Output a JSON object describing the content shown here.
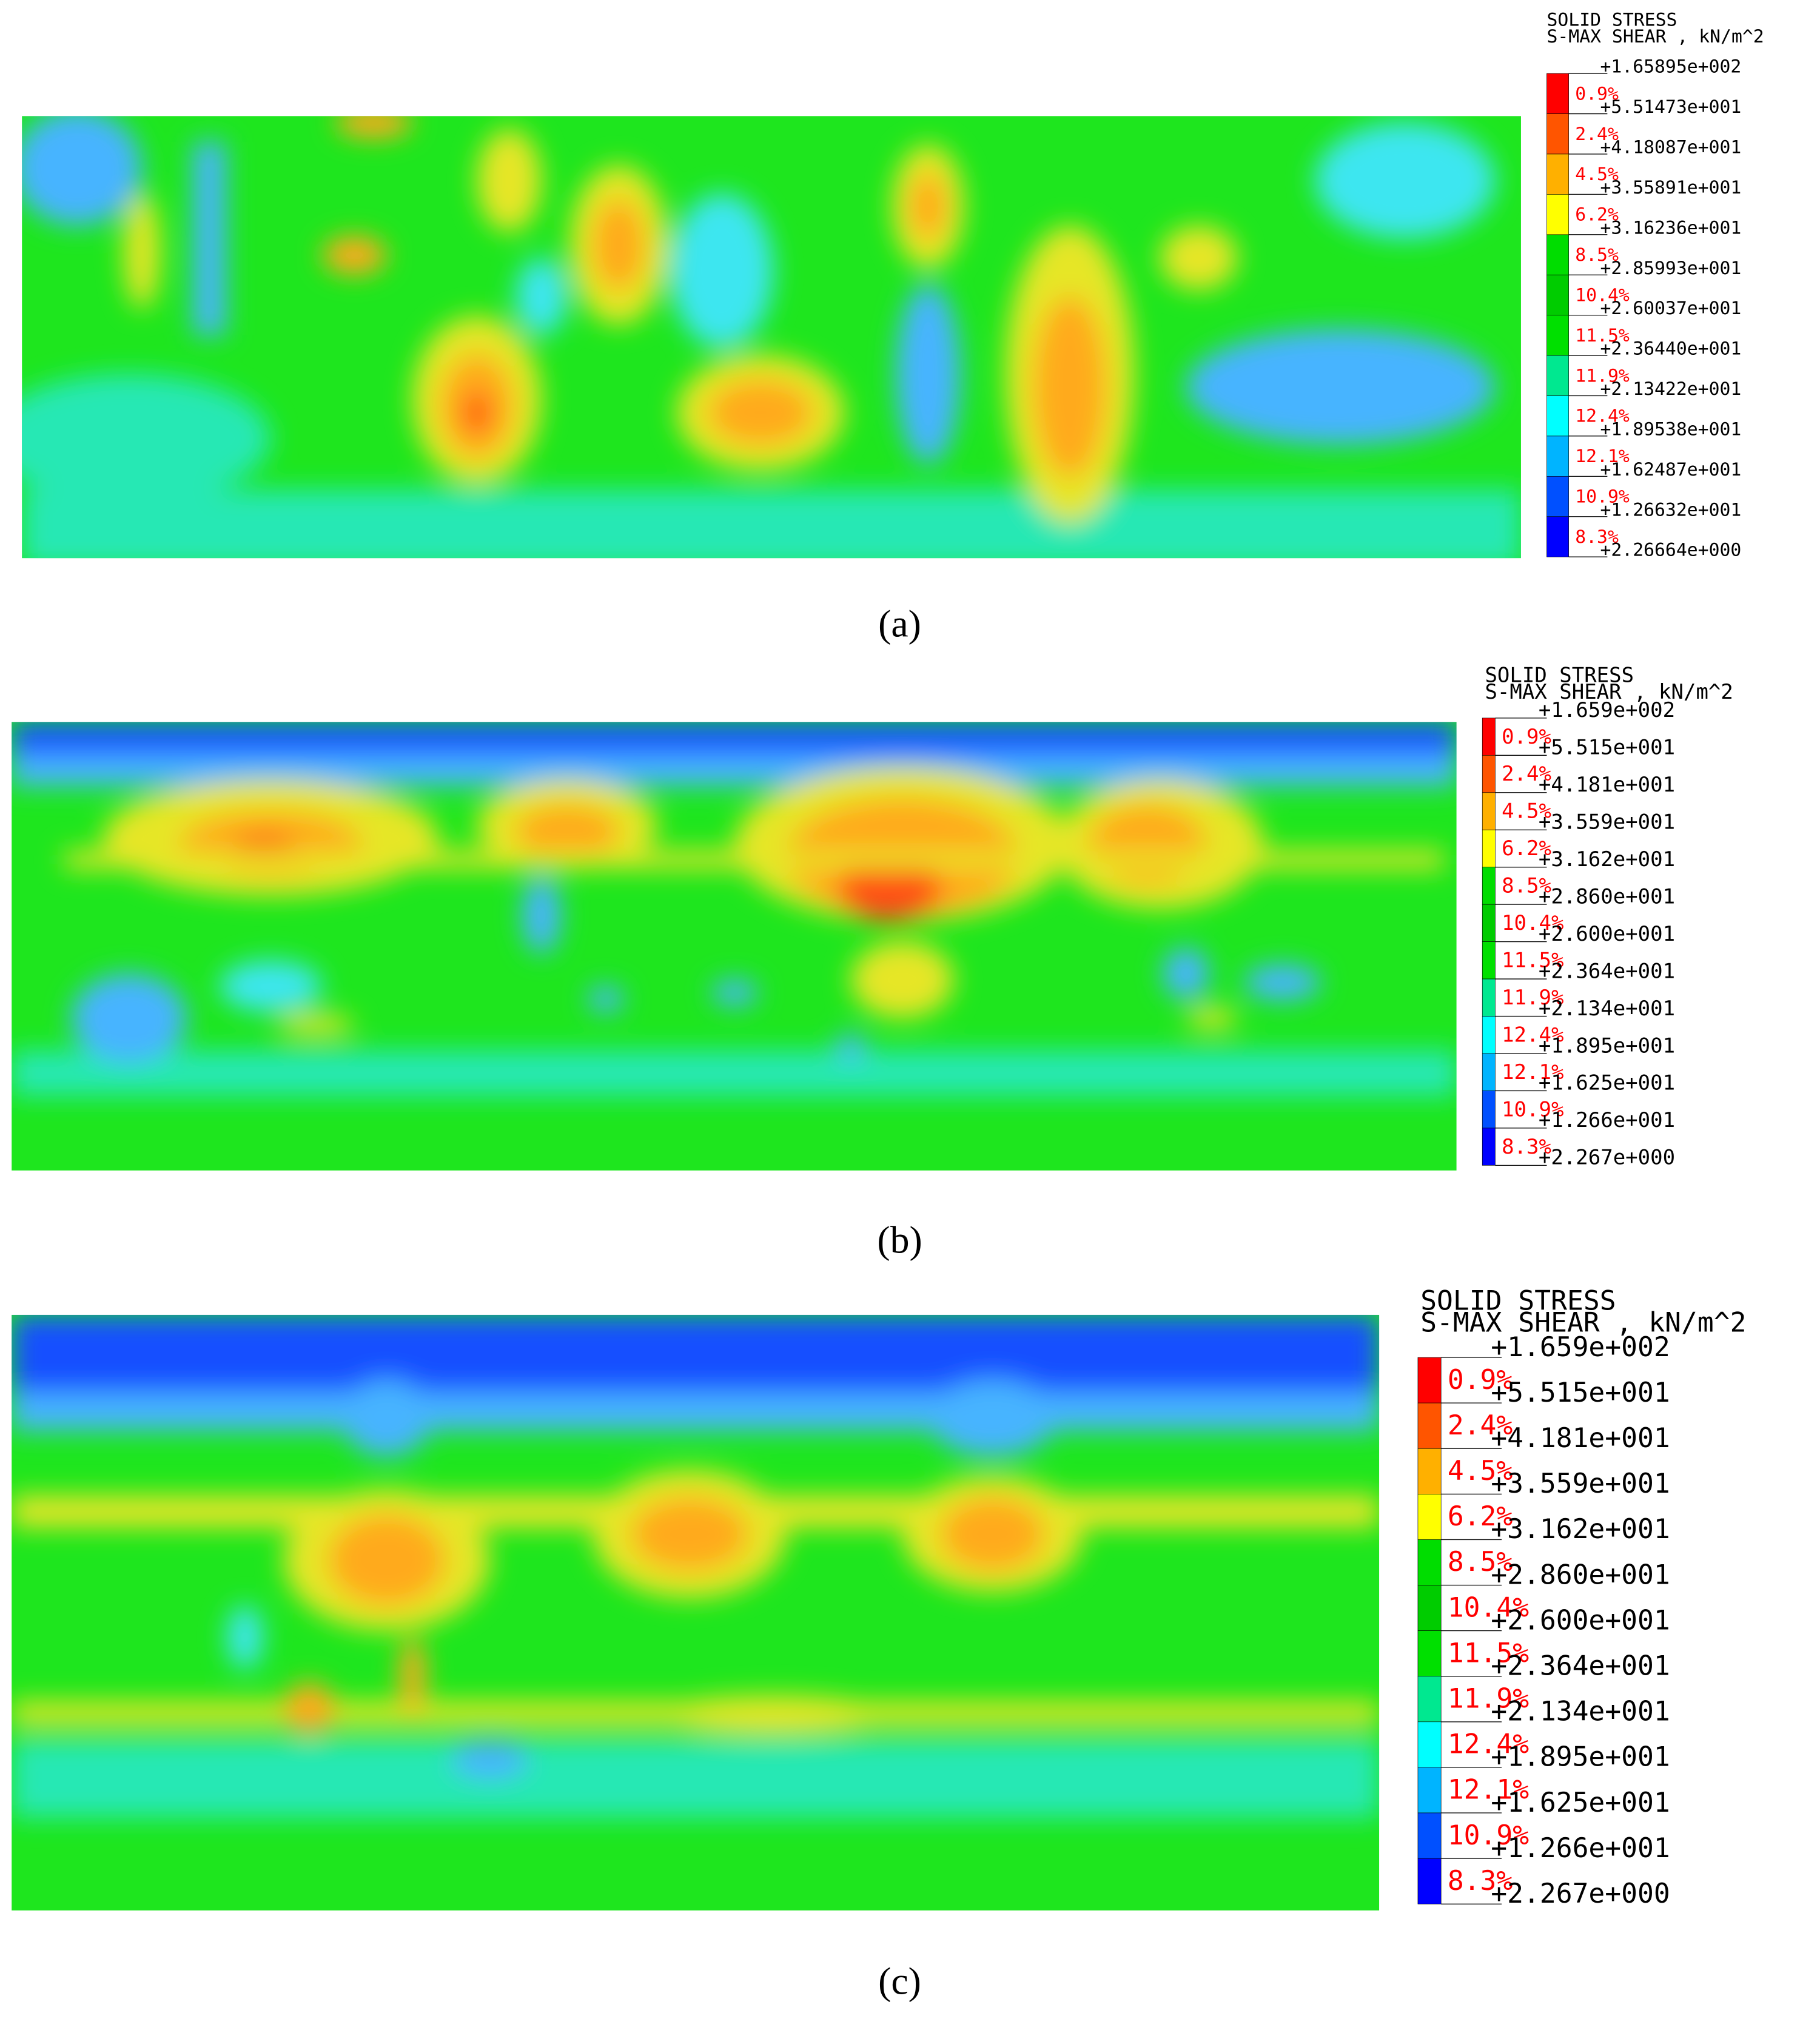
{
  "legend_colors": [
    "#ff0000",
    "#ff5500",
    "#ffb000",
    "#ffff00",
    "#00dd00",
    "#00cc00",
    "#00e000",
    "#00e890",
    "#00ffff",
    "#00b4ff",
    "#0050ff",
    "#0000ff"
  ],
  "panels": [
    {
      "caption": "(a)",
      "legend": {
        "title": "SOLID STRESS",
        "subtitle": "S-MAX SHEAR , kN/m^2",
        "bounds": [
          "+1.65895e+002",
          "+5.51473e+001",
          "+4.18087e+001",
          "+3.55891e+001",
          "+3.16236e+001",
          "+2.85993e+001",
          "+2.60037e+001",
          "+2.36440e+001",
          "+2.13422e+001",
          "+1.89538e+001",
          "+1.62487e+001",
          "+1.26632e+001",
          "+2.26664e+000"
        ],
        "percents": [
          "0.9%",
          "2.4%",
          "4.5%",
          "6.2%",
          "8.5%",
          "10.4%",
          "11.5%",
          "11.9%",
          "12.4%",
          "12.1%",
          "10.9%",
          "8.3%"
        ]
      }
    },
    {
      "caption": "(b)",
      "legend": {
        "title": "SOLID STRESS",
        "subtitle": "S-MAX SHEAR , kN/m^2",
        "bounds": [
          "+1.659e+002",
          "+5.515e+001",
          "+4.181e+001",
          "+3.559e+001",
          "+3.162e+001",
          "+2.860e+001",
          "+2.600e+001",
          "+2.364e+001",
          "+2.134e+001",
          "+1.895e+001",
          "+1.625e+001",
          "+1.266e+001",
          "+2.267e+000"
        ],
        "percents": [
          "0.9%",
          "2.4%",
          "4.5%",
          "6.2%",
          "8.5%",
          "10.4%",
          "11.5%",
          "11.9%",
          "12.4%",
          "12.1%",
          "10.9%",
          "8.3%"
        ]
      }
    },
    {
      "caption": "(c)",
      "legend": {
        "title": "SOLID STRESS",
        "subtitle": "S-MAX SHEAR , kN/m^2",
        "bounds": [
          "+1.659e+002",
          "+5.515e+001",
          "+4.181e+001",
          "+3.559e+001",
          "+3.162e+001",
          "+2.860e+001",
          "+2.600e+001",
          "+2.364e+001",
          "+2.134e+001",
          "+1.895e+001",
          "+1.625e+001",
          "+1.266e+001",
          "+2.267e+000"
        ],
        "percents": [
          "0.9%",
          "2.4%",
          "4.5%",
          "6.2%",
          "8.5%",
          "10.4%",
          "11.5%",
          "11.9%",
          "12.4%",
          "12.1%",
          "10.9%",
          "8.3%"
        ]
      }
    }
  ]
}
